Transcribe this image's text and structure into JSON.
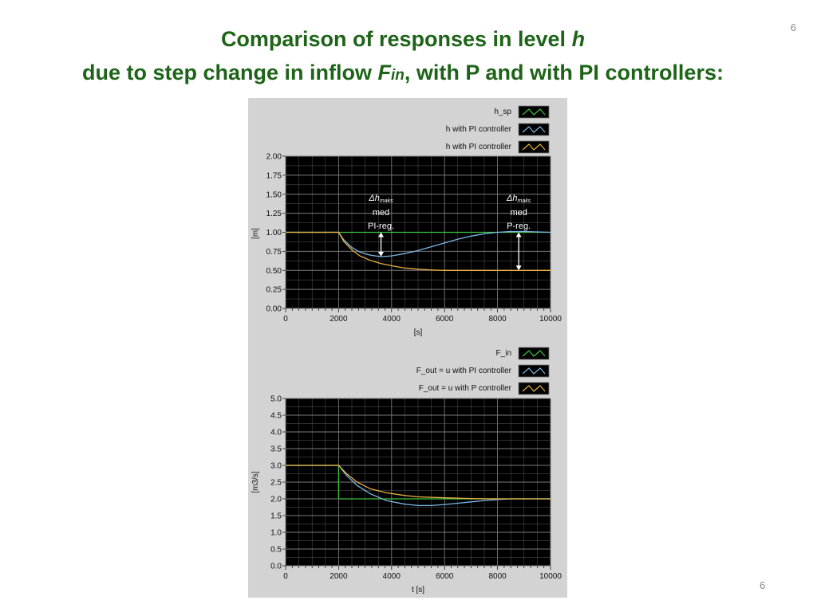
{
  "slide": {
    "title_line1": "Comparison of responses in level ",
    "title_line1_var": "h",
    "title_line2": "due to step change in inflow ",
    "title_line2_var": "F",
    "title_line2_sub": "in",
    "title_line2_rest": ", with P and with PI controllers:",
    "page_number_top": "6",
    "page_number_bottom": "6"
  },
  "colors": {
    "title": "#1e6418",
    "plot_bg": "#000000",
    "grid": "#5a5a5a",
    "setpoint": "#3cc43c",
    "pi": "#7ab8e8",
    "p": "#e8b040"
  },
  "chart_data": [
    {
      "type": "line",
      "xlabel": "[s]",
      "ylabel": "[m]",
      "xlim": [
        0,
        10000
      ],
      "ylim": [
        0,
        2
      ],
      "xticks": [
        "0",
        "2000",
        "4000",
        "6000",
        "8000",
        "10000"
      ],
      "yticks": [
        "0.00",
        "0.25",
        "0.50",
        "0.75",
        "1.00",
        "1.25",
        "1.50",
        "1.75",
        "2.00"
      ],
      "grid": true,
      "legend_position": "top-right",
      "series": [
        {
          "name": "h_sp",
          "color": "#3cc43c",
          "x": [
            0,
            10000
          ],
          "y": [
            1.0,
            1.0
          ]
        },
        {
          "name": "h with PI controller",
          "color": "#7ab8e8",
          "x": [
            0,
            2000,
            2200,
            2500,
            2800,
            3200,
            3600,
            4000,
            4500,
            5000,
            5500,
            6000,
            6500,
            7000,
            7500,
            8000,
            8500,
            9000,
            10000
          ],
          "y": [
            1.0,
            1.0,
            0.9,
            0.8,
            0.74,
            0.7,
            0.68,
            0.69,
            0.72,
            0.76,
            0.81,
            0.86,
            0.91,
            0.95,
            0.98,
            1.0,
            1.01,
            1.01,
            1.0
          ]
        },
        {
          "name": "h with PI controller",
          "color": "#e8b040",
          "x": [
            0,
            2000,
            2200,
            2500,
            2800,
            3200,
            3600,
            4000,
            4500,
            5000,
            5500,
            6000,
            7000,
            8000,
            10000
          ],
          "y": [
            1.0,
            1.0,
            0.88,
            0.77,
            0.69,
            0.63,
            0.59,
            0.56,
            0.53,
            0.515,
            0.505,
            0.5,
            0.5,
            0.5,
            0.5
          ]
        }
      ],
      "annotations": [
        {
          "lines": [
            "Δh",
            "maks",
            "med",
            "PI-reg."
          ],
          "x": 3600,
          "y_from": 0.68,
          "y_to": 1.0
        },
        {
          "lines": [
            "Δh",
            "maks",
            "med",
            "P-reg."
          ],
          "x": 8800,
          "y_from": 0.5,
          "y_to": 1.0
        }
      ]
    },
    {
      "type": "line",
      "xlabel": "t [s]",
      "ylabel": "[m3/s]",
      "xlim": [
        0,
        10000
      ],
      "ylim": [
        0,
        5
      ],
      "xticks": [
        "0",
        "2000",
        "4000",
        "6000",
        "8000",
        "10000"
      ],
      "yticks": [
        "0.0",
        "0.5",
        "1.0",
        "1.5",
        "2.0",
        "2.5",
        "3.0",
        "3.5",
        "4.0",
        "4.5",
        "5.0"
      ],
      "grid": true,
      "legend_position": "top-right",
      "series": [
        {
          "name": "F_in",
          "color": "#3cc43c",
          "x": [
            0,
            2000,
            2000,
            10000
          ],
          "y": [
            3.0,
            3.0,
            2.0,
            2.0
          ]
        },
        {
          "name": "F_out = u with PI controller",
          "color": "#7ab8e8",
          "x": [
            0,
            2000,
            2300,
            2700,
            3200,
            3800,
            4500,
            5000,
            5500,
            6000,
            6500,
            7000,
            7500,
            8000,
            8500,
            9000,
            10000
          ],
          "y": [
            3.0,
            3.0,
            2.7,
            2.4,
            2.15,
            1.95,
            1.84,
            1.8,
            1.8,
            1.83,
            1.87,
            1.91,
            1.95,
            1.98,
            2.0,
            2.0,
            2.0
          ]
        },
        {
          "name": "F_out = u with P controller",
          "color": "#e8b040",
          "x": [
            0,
            2000,
            2300,
            2700,
            3200,
            3800,
            4500,
            5000,
            6000,
            7000,
            8000,
            9000,
            10000
          ],
          "y": [
            3.0,
            3.0,
            2.75,
            2.5,
            2.3,
            2.18,
            2.1,
            2.06,
            2.03,
            2.01,
            2.0,
            2.0,
            2.0
          ]
        }
      ]
    }
  ]
}
